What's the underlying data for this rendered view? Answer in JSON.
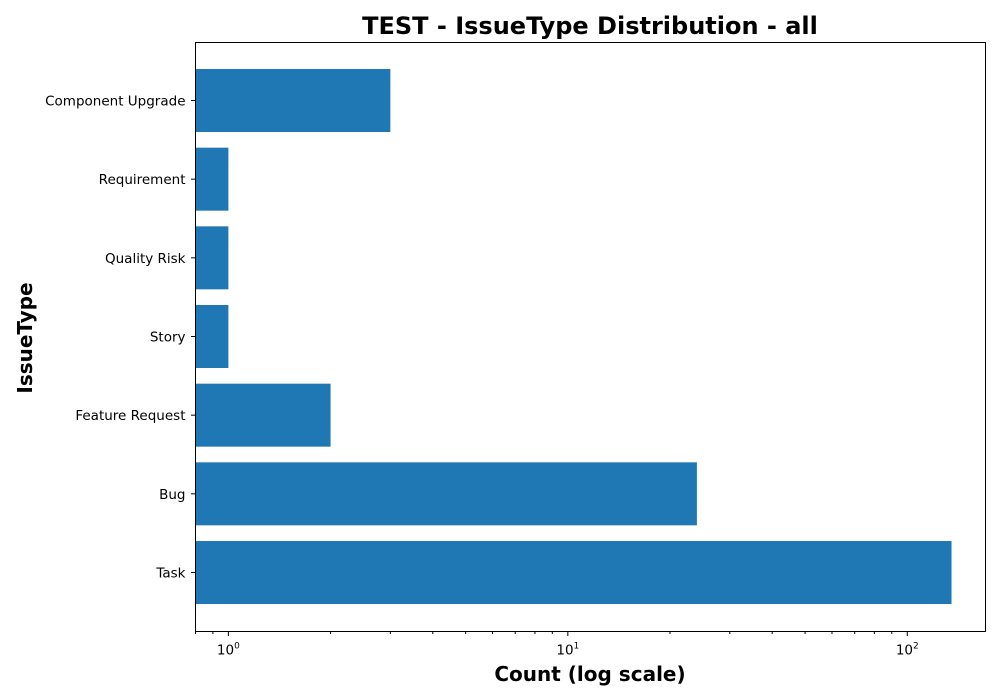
{
  "chart_data": {
    "type": "bar",
    "orientation": "horizontal",
    "title": "TEST - IssueType Distribution - all",
    "xlabel": "Count (log scale)",
    "ylabel": "IssueType",
    "x_scale": "log",
    "xlim": [
      0.8,
      170
    ],
    "x_ticks": [
      {
        "value": 1,
        "base": "10",
        "exp": "0"
      },
      {
        "value": 10,
        "base": "10",
        "exp": "1"
      },
      {
        "value": 100,
        "base": "10",
        "exp": "2"
      }
    ],
    "categories": [
      "Component Upgrade",
      "Requirement",
      "Quality Risk",
      "Story",
      "Feature Request",
      "Bug",
      "Task"
    ],
    "values": [
      3,
      1,
      1,
      1,
      2,
      24,
      135
    ],
    "bar_color": "#1f77b4",
    "grid": false
  }
}
